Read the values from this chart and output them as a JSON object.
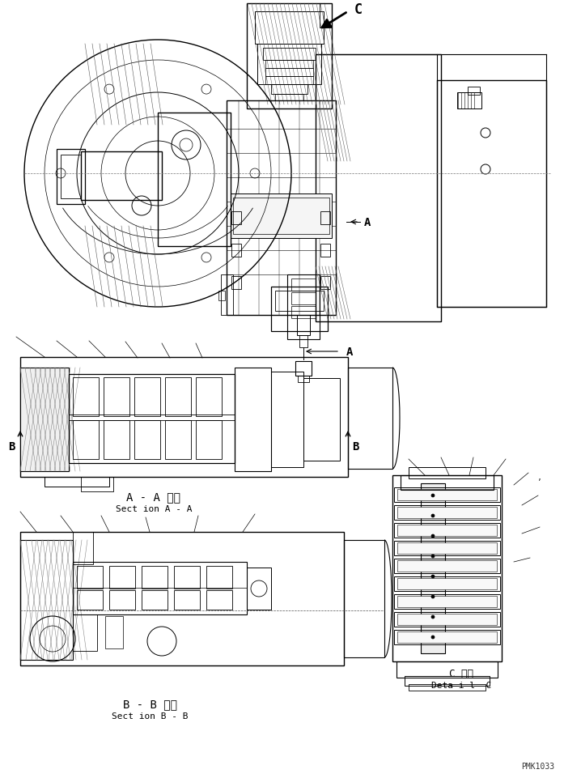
{
  "background_color": "#ffffff",
  "line_color": "#000000",
  "label_A": "A",
  "label_B": "B",
  "label_C": "C",
  "label_AA_jp": "A - A 断面",
  "label_AA_en": "Sect ion A - A",
  "label_BB_jp": "B - B 断面",
  "label_BB_en": "Sect ion B - B",
  "label_C_jp": "C 詳細",
  "label_C_en": "Deta i l  C",
  "watermark": "PMK1033",
  "fig_w": 6.97,
  "fig_h": 9.62,
  "dpi": 100
}
